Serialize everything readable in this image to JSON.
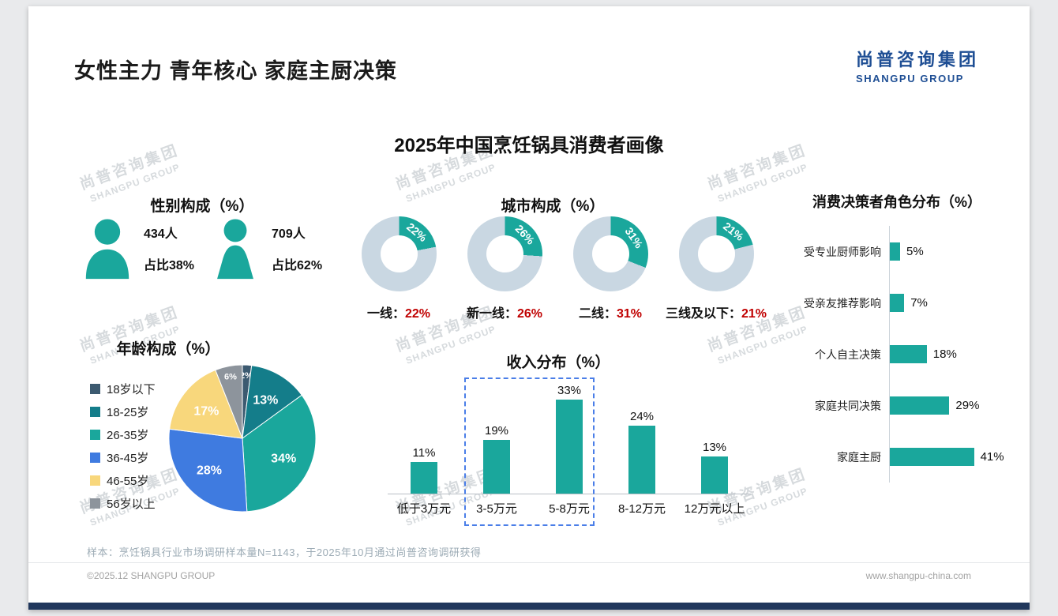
{
  "page": {
    "title": "女性主力 青年核心 家庭主厨决策",
    "subtitle": "2025年中国烹饪锅具消费者画像",
    "logo": {
      "cn": "尚普咨询集团",
      "en": "SHANGPU GROUP"
    },
    "watermark": {
      "cn": "尚普咨询集团",
      "en": "SHANGPU GROUP"
    },
    "sample_note": "样本：烹饪锅具行业市场调研样本量N=1143，于2025年10月通过尚普咨询调研获得",
    "footer": {
      "copyright": "©2025.12 SHANGPU GROUP",
      "website": "www.shangpu-china.com"
    }
  },
  "colors": {
    "teal": "#1aa79c",
    "donut_rest": "#c9d7e2",
    "red": "#c00000",
    "navy": "#1e4e94",
    "pie": [
      "#3c5a70",
      "#147d8a",
      "#1aa79c",
      "#3f7be0",
      "#f8d77c",
      "#8d949c"
    ]
  },
  "chart_data": [
    {
      "type": "pictogram",
      "title": "性别构成（%）",
      "items": [
        {
          "gender": "male",
          "count": "434人",
          "share": "占比38%"
        },
        {
          "gender": "female",
          "count": "709人",
          "share": "占比62%"
        }
      ]
    },
    {
      "type": "pie",
      "title": "年龄构成（%）",
      "categories": [
        "18岁以下",
        "18-25岁",
        "26-35岁",
        "36-45岁",
        "46-55岁",
        "56岁以上"
      ],
      "values": [
        2,
        13,
        34,
        28,
        17,
        6
      ],
      "legend_position": "left"
    },
    {
      "type": "pie",
      "subtype": "donut-set",
      "title": "城市构成（%）",
      "categories": [
        "一线",
        "新一线",
        "二线",
        "三线及以下"
      ],
      "values": [
        22,
        26,
        31,
        21
      ]
    },
    {
      "type": "bar",
      "title": "收入分布（%）",
      "categories": [
        "低于3万元",
        "3-5万元",
        "5-8万元",
        "8-12万元",
        "12万元以上"
      ],
      "values": [
        11,
        19,
        33,
        24,
        13
      ],
      "ylim": [
        0,
        40
      ],
      "highlight_categories": [
        "3-5万元",
        "5-8万元"
      ]
    },
    {
      "type": "bar",
      "subtype": "horizontal",
      "title": "消费决策者角色分布（%）",
      "categories": [
        "受专业厨师影响",
        "受亲友推荐影响",
        "个人自主决策",
        "家庭共同决策",
        "家庭主厨"
      ],
      "values": [
        5,
        7,
        18,
        29,
        41
      ],
      "xlim": [
        0,
        50
      ]
    }
  ]
}
